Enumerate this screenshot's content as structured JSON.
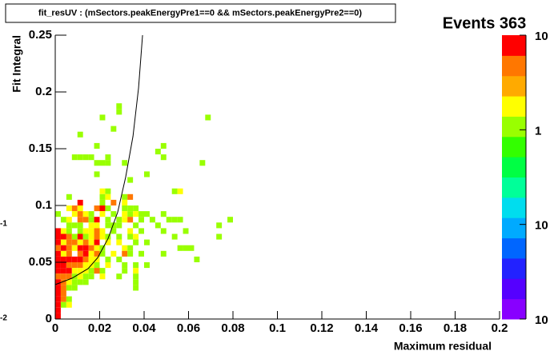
{
  "chart_data": {
    "type": "heatmap",
    "title": "fit_resUV : (mSectors.peakEnergyPre1==0 && mSectors.peakEnergyPre2==0)",
    "stats": "Events 363",
    "x_label": "Maximum residual",
    "y_label": "Fit Integral",
    "xlim": [
      0,
      0.2
    ],
    "ylim": [
      0,
      0.25
    ],
    "xticks": [
      0,
      0.02,
      0.04,
      0.06,
      0.08,
      0.1,
      0.12,
      0.14,
      0.16,
      0.18,
      0.2
    ],
    "yticks": [
      0,
      0.05,
      0.1,
      0.15,
      0.2,
      0.25
    ],
    "zlim": [
      0.01,
      10
    ],
    "zlog": true,
    "zticks": [
      {
        "value": 10,
        "label": "10"
      },
      1,
      {
        "value": 0.1,
        "label": "10",
        "exponent": "-1"
      },
      {
        "value": 0.01,
        "label": "10",
        "exponent": "-2"
      }
    ],
    "palette": [
      "#8800ff",
      "#5500ff",
      "#2222ff",
      "#0066ff",
      "#00aaff",
      "#00ddee",
      "#00ff99",
      "#00ff44",
      "#33ff00",
      "#99ff00",
      "#ffff00",
      "#ffaa00",
      "#ff7700",
      "#ff0000"
    ],
    "xbin": 0.0025,
    "ybin": 0.005,
    "cells": [
      [
        0.0675,
        0.175,
        1
      ],
      [
        0.02,
        0.175,
        1
      ],
      [
        0.0275,
        0.18,
        1
      ],
      [
        0.0275,
        0.185,
        1
      ],
      [
        0.025,
        0.165,
        1
      ],
      [
        0.01,
        0.16,
        1
      ],
      [
        0.0175,
        0.15,
        1
      ],
      [
        0.0475,
        0.15,
        1
      ],
      [
        0.045,
        0.145,
        1
      ],
      [
        0.0075,
        0.14,
        1
      ],
      [
        0.01,
        0.14,
        1
      ],
      [
        0.0125,
        0.14,
        1
      ],
      [
        0.015,
        0.14,
        1
      ],
      [
        0.0225,
        0.14,
        1
      ],
      [
        0.0475,
        0.14,
        1
      ],
      [
        0.0175,
        0.135,
        1
      ],
      [
        0.02,
        0.135,
        1
      ],
      [
        0.0225,
        0.135,
        1
      ],
      [
        0.03,
        0.135,
        1
      ],
      [
        0.065,
        0.135,
        1
      ],
      [
        0.0175,
        0.125,
        1
      ],
      [
        0.04,
        0.125,
        1
      ],
      [
        0.0325,
        0.12,
        1
      ],
      [
        0.02,
        0.11,
        2
      ],
      [
        0.0225,
        0.11,
        1
      ],
      [
        0.0525,
        0.11,
        1
      ],
      [
        0.055,
        0.11,
        2
      ],
      [
        0.005,
        0.105,
        1
      ],
      [
        0.02,
        0.105,
        1
      ],
      [
        0.0225,
        0.105,
        2
      ],
      [
        0.03,
        0.105,
        1
      ],
      [
        0.0325,
        0.105,
        4
      ],
      [
        0.01,
        0.1,
        7
      ],
      [
        0.02,
        0.1,
        1
      ],
      [
        0.025,
        0.1,
        4
      ],
      [
        0.03,
        0.1,
        2
      ],
      [
        0.005,
        0.095,
        2
      ],
      [
        0.0075,
        0.095,
        4
      ],
      [
        0.01,
        0.095,
        2
      ],
      [
        0.0175,
        0.095,
        4
      ],
      [
        0.02,
        0.095,
        7
      ],
      [
        0.0225,
        0.095,
        1
      ],
      [
        0.03,
        0.095,
        1
      ],
      [
        0.0325,
        0.095,
        1
      ],
      [
        0.035,
        0.095,
        1
      ],
      [
        0,
        0.09,
        1
      ],
      [
        0.0075,
        0.09,
        2
      ],
      [
        0.01,
        0.09,
        4
      ],
      [
        0.0125,
        0.09,
        2
      ],
      [
        0.015,
        0.09,
        1
      ],
      [
        0.02,
        0.09,
        2
      ],
      [
        0.025,
        0.09,
        1
      ],
      [
        0.03,
        0.09,
        2
      ],
      [
        0.0325,
        0.09,
        1
      ],
      [
        0.035,
        0.09,
        2
      ],
      [
        0.0375,
        0.09,
        1
      ],
      [
        0.04,
        0.09,
        1
      ],
      [
        0.0475,
        0.09,
        1
      ],
      [
        0.0025,
        0.085,
        1
      ],
      [
        0.005,
        0.085,
        2
      ],
      [
        0.01,
        0.085,
        4
      ],
      [
        0.0125,
        0.085,
        4
      ],
      [
        0.015,
        0.085,
        1
      ],
      [
        0.0175,
        0.085,
        7
      ],
      [
        0.0225,
        0.085,
        1
      ],
      [
        0.0275,
        0.085,
        1
      ],
      [
        0.03,
        0.085,
        2
      ],
      [
        0.0325,
        0.085,
        4
      ],
      [
        0.0375,
        0.085,
        1
      ],
      [
        0.0425,
        0.085,
        1
      ],
      [
        0.05,
        0.085,
        1
      ],
      [
        0.0525,
        0.085,
        1
      ],
      [
        0.055,
        0.085,
        1
      ],
      [
        0.0775,
        0.085,
        1
      ],
      [
        0.005,
        0.08,
        1
      ],
      [
        0.0075,
        0.08,
        1
      ],
      [
        0.01,
        0.08,
        1
      ],
      [
        0.015,
        0.08,
        2
      ],
      [
        0.0175,
        0.08,
        2
      ],
      [
        0.0225,
        0.08,
        1
      ],
      [
        0.025,
        0.08,
        1
      ],
      [
        0.0275,
        0.08,
        1
      ],
      [
        0.035,
        0.08,
        1
      ],
      [
        0.045,
        0.08,
        1
      ],
      [
        0.0725,
        0.08,
        1
      ],
      [
        0,
        0.075,
        7
      ],
      [
        0.0025,
        0.075,
        2
      ],
      [
        0.005,
        0.075,
        1
      ],
      [
        0.01,
        0.075,
        1
      ],
      [
        0.0125,
        0.075,
        2
      ],
      [
        0.015,
        0.075,
        2
      ],
      [
        0.0175,
        0.075,
        4
      ],
      [
        0.02,
        0.075,
        2
      ],
      [
        0.025,
        0.075,
        1
      ],
      [
        0.0325,
        0.075,
        2
      ],
      [
        0.0375,
        0.075,
        1
      ],
      [
        0.0475,
        0.075,
        1
      ],
      [
        0.0575,
        0.075,
        1
      ],
      [
        0,
        0.07,
        7
      ],
      [
        0.0025,
        0.07,
        7
      ],
      [
        0.005,
        0.07,
        4
      ],
      [
        0.0075,
        0.07,
        1
      ],
      [
        0.01,
        0.07,
        7
      ],
      [
        0.0125,
        0.07,
        1
      ],
      [
        0.015,
        0.07,
        2
      ],
      [
        0.0175,
        0.07,
        4
      ],
      [
        0.02,
        0.07,
        2
      ],
      [
        0.0225,
        0.07,
        1
      ],
      [
        0.0275,
        0.07,
        1
      ],
      [
        0.0325,
        0.07,
        1
      ],
      [
        0.035,
        0.07,
        2
      ],
      [
        0.0525,
        0.07,
        1
      ],
      [
        0.0725,
        0.07,
        1
      ],
      [
        0,
        0.065,
        7
      ],
      [
        0.0025,
        0.065,
        2
      ],
      [
        0.005,
        0.065,
        4
      ],
      [
        0.0075,
        0.065,
        4
      ],
      [
        0.01,
        0.065,
        2
      ],
      [
        0.0125,
        0.065,
        4
      ],
      [
        0.015,
        0.065,
        2
      ],
      [
        0.0175,
        0.065,
        7
      ],
      [
        0.0225,
        0.065,
        2
      ],
      [
        0.0275,
        0.065,
        2
      ],
      [
        0.035,
        0.065,
        1
      ],
      [
        0.04,
        0.065,
        1
      ],
      [
        0,
        0.06,
        4
      ],
      [
        0.0025,
        0.06,
        7
      ],
      [
        0.005,
        0.06,
        4
      ],
      [
        0.0075,
        0.06,
        2
      ],
      [
        0.01,
        0.06,
        7
      ],
      [
        0.0125,
        0.06,
        7
      ],
      [
        0.015,
        0.06,
        4
      ],
      [
        0.0175,
        0.06,
        2
      ],
      [
        0.02,
        0.06,
        1
      ],
      [
        0.03,
        0.06,
        2
      ],
      [
        0.0325,
        0.06,
        1
      ],
      [
        0.055,
        0.06,
        1
      ],
      [
        0.0575,
        0.06,
        1
      ],
      [
        0.06,
        0.06,
        1
      ],
      [
        0,
        0.055,
        7
      ],
      [
        0.0025,
        0.055,
        2
      ],
      [
        0.005,
        0.055,
        4
      ],
      [
        0.01,
        0.055,
        4
      ],
      [
        0.0125,
        0.055,
        7
      ],
      [
        0.015,
        0.055,
        2
      ],
      [
        0.0175,
        0.055,
        4
      ],
      [
        0.02,
        0.055,
        1
      ],
      [
        0.025,
        0.055,
        2
      ],
      [
        0.03,
        0.055,
        4
      ],
      [
        0.0325,
        0.055,
        1
      ],
      [
        0.0375,
        0.055,
        1
      ],
      [
        0.0475,
        0.055,
        1
      ],
      [
        0,
        0.05,
        7
      ],
      [
        0.0025,
        0.05,
        7
      ],
      [
        0.005,
        0.05,
        7
      ],
      [
        0.0075,
        0.05,
        7
      ],
      [
        0.01,
        0.05,
        7
      ],
      [
        0.0125,
        0.05,
        4
      ],
      [
        0.015,
        0.05,
        2
      ],
      [
        0.0175,
        0.05,
        2
      ],
      [
        0.0225,
        0.05,
        1
      ],
      [
        0.0275,
        0.05,
        1
      ],
      [
        0.0625,
        0.05,
        1
      ],
      [
        0,
        0.045,
        7
      ],
      [
        0.0025,
        0.045,
        7
      ],
      [
        0.005,
        0.045,
        4
      ],
      [
        0.0075,
        0.045,
        4
      ],
      [
        0.01,
        0.045,
        4
      ],
      [
        0.0125,
        0.045,
        2
      ],
      [
        0.015,
        0.045,
        2
      ],
      [
        0.0175,
        0.045,
        1
      ],
      [
        0.0225,
        0.045,
        2
      ],
      [
        0.03,
        0.045,
        1
      ],
      [
        0.035,
        0.045,
        1
      ],
      [
        0.04,
        0.045,
        1
      ],
      [
        0,
        0.04,
        7
      ],
      [
        0.0025,
        0.04,
        7
      ],
      [
        0.005,
        0.04,
        7
      ],
      [
        0.0075,
        0.04,
        2
      ],
      [
        0.01,
        0.04,
        2
      ],
      [
        0.0125,
        0.04,
        2
      ],
      [
        0.015,
        0.04,
        1
      ],
      [
        0.0175,
        0.04,
        4
      ],
      [
        0.02,
        0.04,
        1
      ],
      [
        0.03,
        0.04,
        1
      ],
      [
        0.035,
        0.04,
        2
      ],
      [
        0,
        0.035,
        4
      ],
      [
        0.0025,
        0.035,
        4
      ],
      [
        0.005,
        0.035,
        4
      ],
      [
        0.0075,
        0.035,
        1
      ],
      [
        0.01,
        0.035,
        2
      ],
      [
        0.0125,
        0.035,
        1
      ],
      [
        0.015,
        0.035,
        1
      ],
      [
        0.02,
        0.035,
        2
      ],
      [
        0.0275,
        0.035,
        1
      ],
      [
        0.035,
        0.035,
        1
      ],
      [
        0,
        0.03,
        7
      ],
      [
        0.0025,
        0.03,
        4
      ],
      [
        0.005,
        0.03,
        2
      ],
      [
        0.0075,
        0.03,
        1
      ],
      [
        0.01,
        0.03,
        1
      ],
      [
        0.0125,
        0.03,
        1
      ],
      [
        0.035,
        0.03,
        1
      ],
      [
        0,
        0.025,
        7
      ],
      [
        0.0025,
        0.025,
        4
      ],
      [
        0.005,
        0.025,
        1
      ],
      [
        0.0075,
        0.025,
        1
      ],
      [
        0.035,
        0.025,
        1
      ],
      [
        0,
        0.02,
        7
      ],
      [
        0.0025,
        0.02,
        4
      ],
      [
        0,
        0.015,
        7
      ],
      [
        0.0025,
        0.015,
        4
      ],
      [
        0.005,
        0.015,
        1
      ],
      [
        0,
        0.01,
        7
      ],
      [
        0.0025,
        0.01,
        1
      ],
      [
        0.005,
        0.01,
        2
      ],
      [
        0,
        0.005,
        7
      ],
      [
        0,
        0,
        7
      ]
    ],
    "curve": {
      "x": [
        0,
        0.0076,
        0.0148,
        0.0191,
        0.0238,
        0.0281,
        0.0317,
        0.035,
        0.0375,
        0.0393
      ],
      "y": [
        0.0303,
        0.036,
        0.0444,
        0.054,
        0.071,
        0.094,
        0.125,
        0.161,
        0.2035,
        0.25
      ],
      "color": "#000000"
    }
  }
}
